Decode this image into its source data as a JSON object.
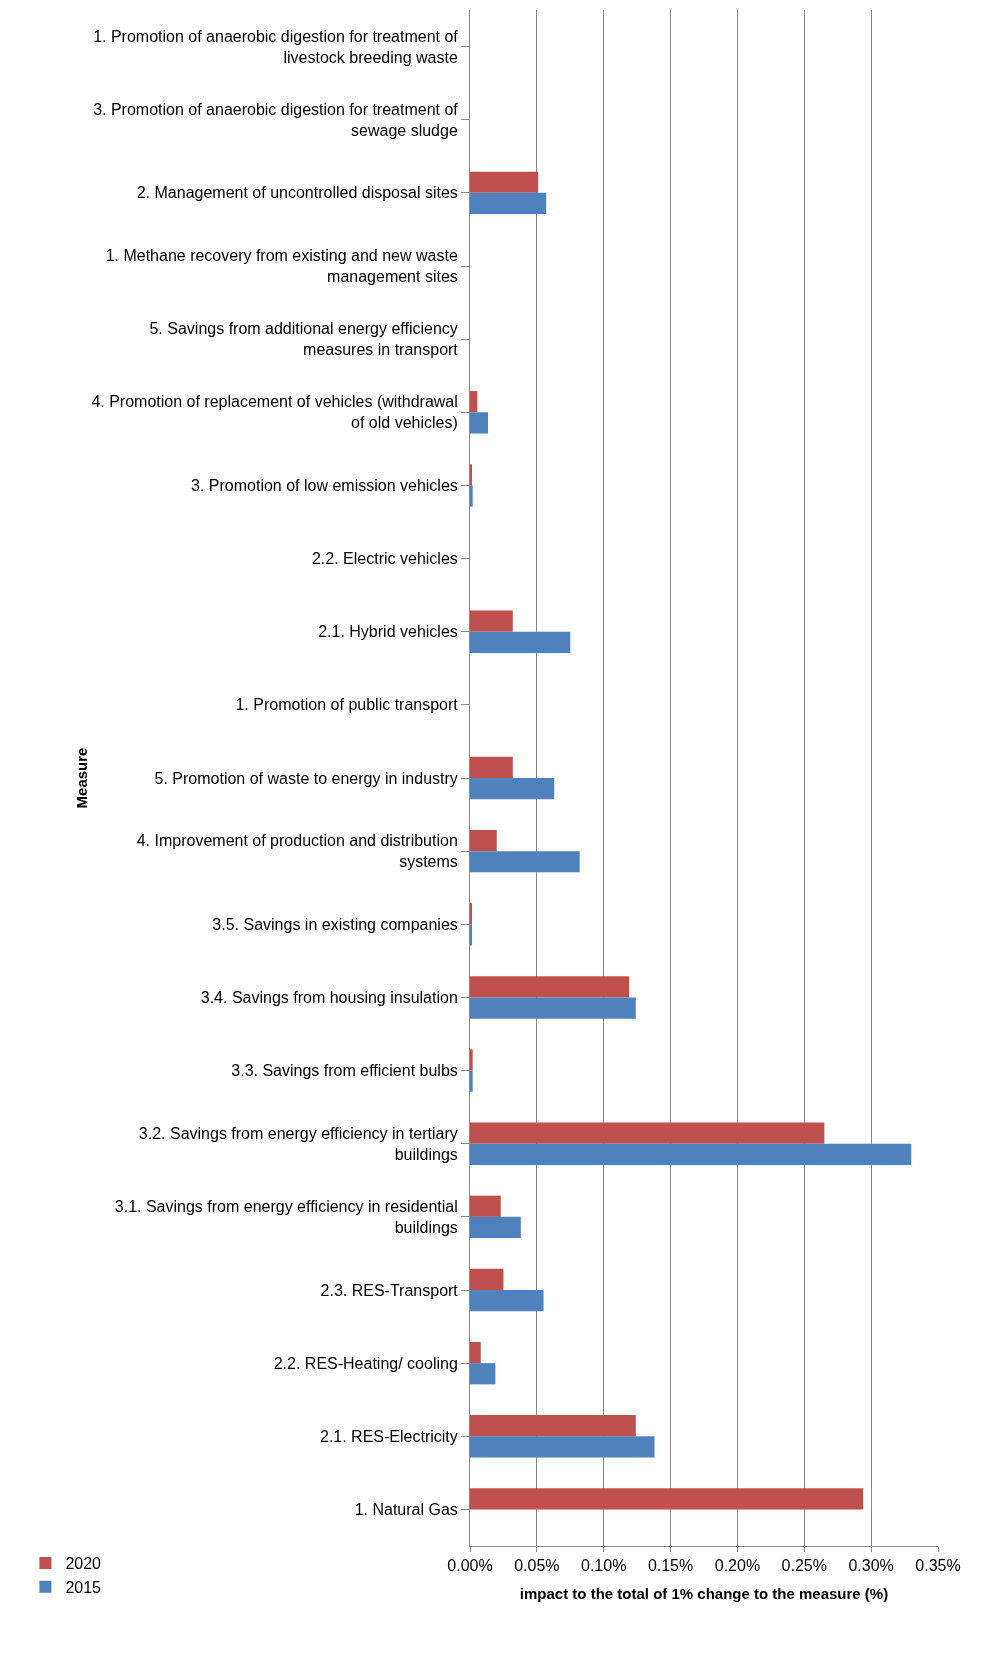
{
  "chart_data": {
    "type": "bar",
    "orientation": "horizontal",
    "xlabel": "impact to the total of 1% change to the measure (%)",
    "ylabel": "Measure",
    "categories": [
      "1. Promotion of anaerobic digestion for treatment of livestock breeding waste",
      "3. Promotion of anaerobic digestion for treatment of sewage sludge",
      "2. Management of uncontrolled disposal sites",
      "1. Methane recovery from existing and new waste management sites",
      "5. Savings from additional energy efficiency measures in transport",
      "4. Promotion of replacement of vehicles (withdrawal of old vehicles)",
      "3. Promotion of low emission vehicles",
      "2.2. Electric vehicles",
      "2.1. Hybrid vehicles",
      "1. Promotion of public transport",
      "5. Promotion of waste to energy in industry",
      "4. Improvement of production and distribution systems",
      "3.5. Savings in existing companies",
      "3.4. Savings from housing insulation",
      "3.3. Savings from efficient bulbs",
      "3.2. Savings from energy efficiency in tertiary buildings",
      "3.1. Savings from energy efficiency in residential buildings",
      "2.3. RES-Transport",
      "2.2. RES-Heating/ cooling",
      "2.1. RES-Electricity",
      "1. Natural Gas"
    ],
    "series": [
      {
        "name": "2020",
        "color": "#c0504d",
        "values": [
          0,
          0,
          0.051,
          0,
          0,
          0.0055,
          0.001,
          0,
          0.032,
          0,
          0.032,
          0.02,
          0.001,
          0.119,
          0.002,
          0.265,
          0.023,
          0.025,
          0.008,
          0.124,
          0.294
        ]
      },
      {
        "name": "2015",
        "color": "#4f81bd",
        "values": [
          0,
          0,
          0.057,
          0,
          0,
          0.0135,
          0.002,
          0,
          0.075,
          0,
          0.063,
          0.082,
          0.001,
          0.124,
          0.002,
          0.33,
          0.038,
          0.055,
          0.019,
          0.138,
          0
        ]
      }
    ],
    "xlim": [
      0,
      0.35
    ],
    "xticks": [
      {
        "value": 0,
        "label": "0.00%"
      },
      {
        "value": 0.05,
        "label": "0.05%"
      },
      {
        "value": 0.1,
        "label": "0.10%"
      },
      {
        "value": 0.15,
        "label": "0.15%"
      },
      {
        "value": 0.2,
        "label": "0.20%"
      },
      {
        "value": 0.25,
        "label": "0.25%"
      },
      {
        "value": 0.3,
        "label": "0.30%"
      },
      {
        "value": 0.35,
        "label": "0.35%"
      }
    ],
    "grid": "x",
    "legend": "bottom left"
  }
}
